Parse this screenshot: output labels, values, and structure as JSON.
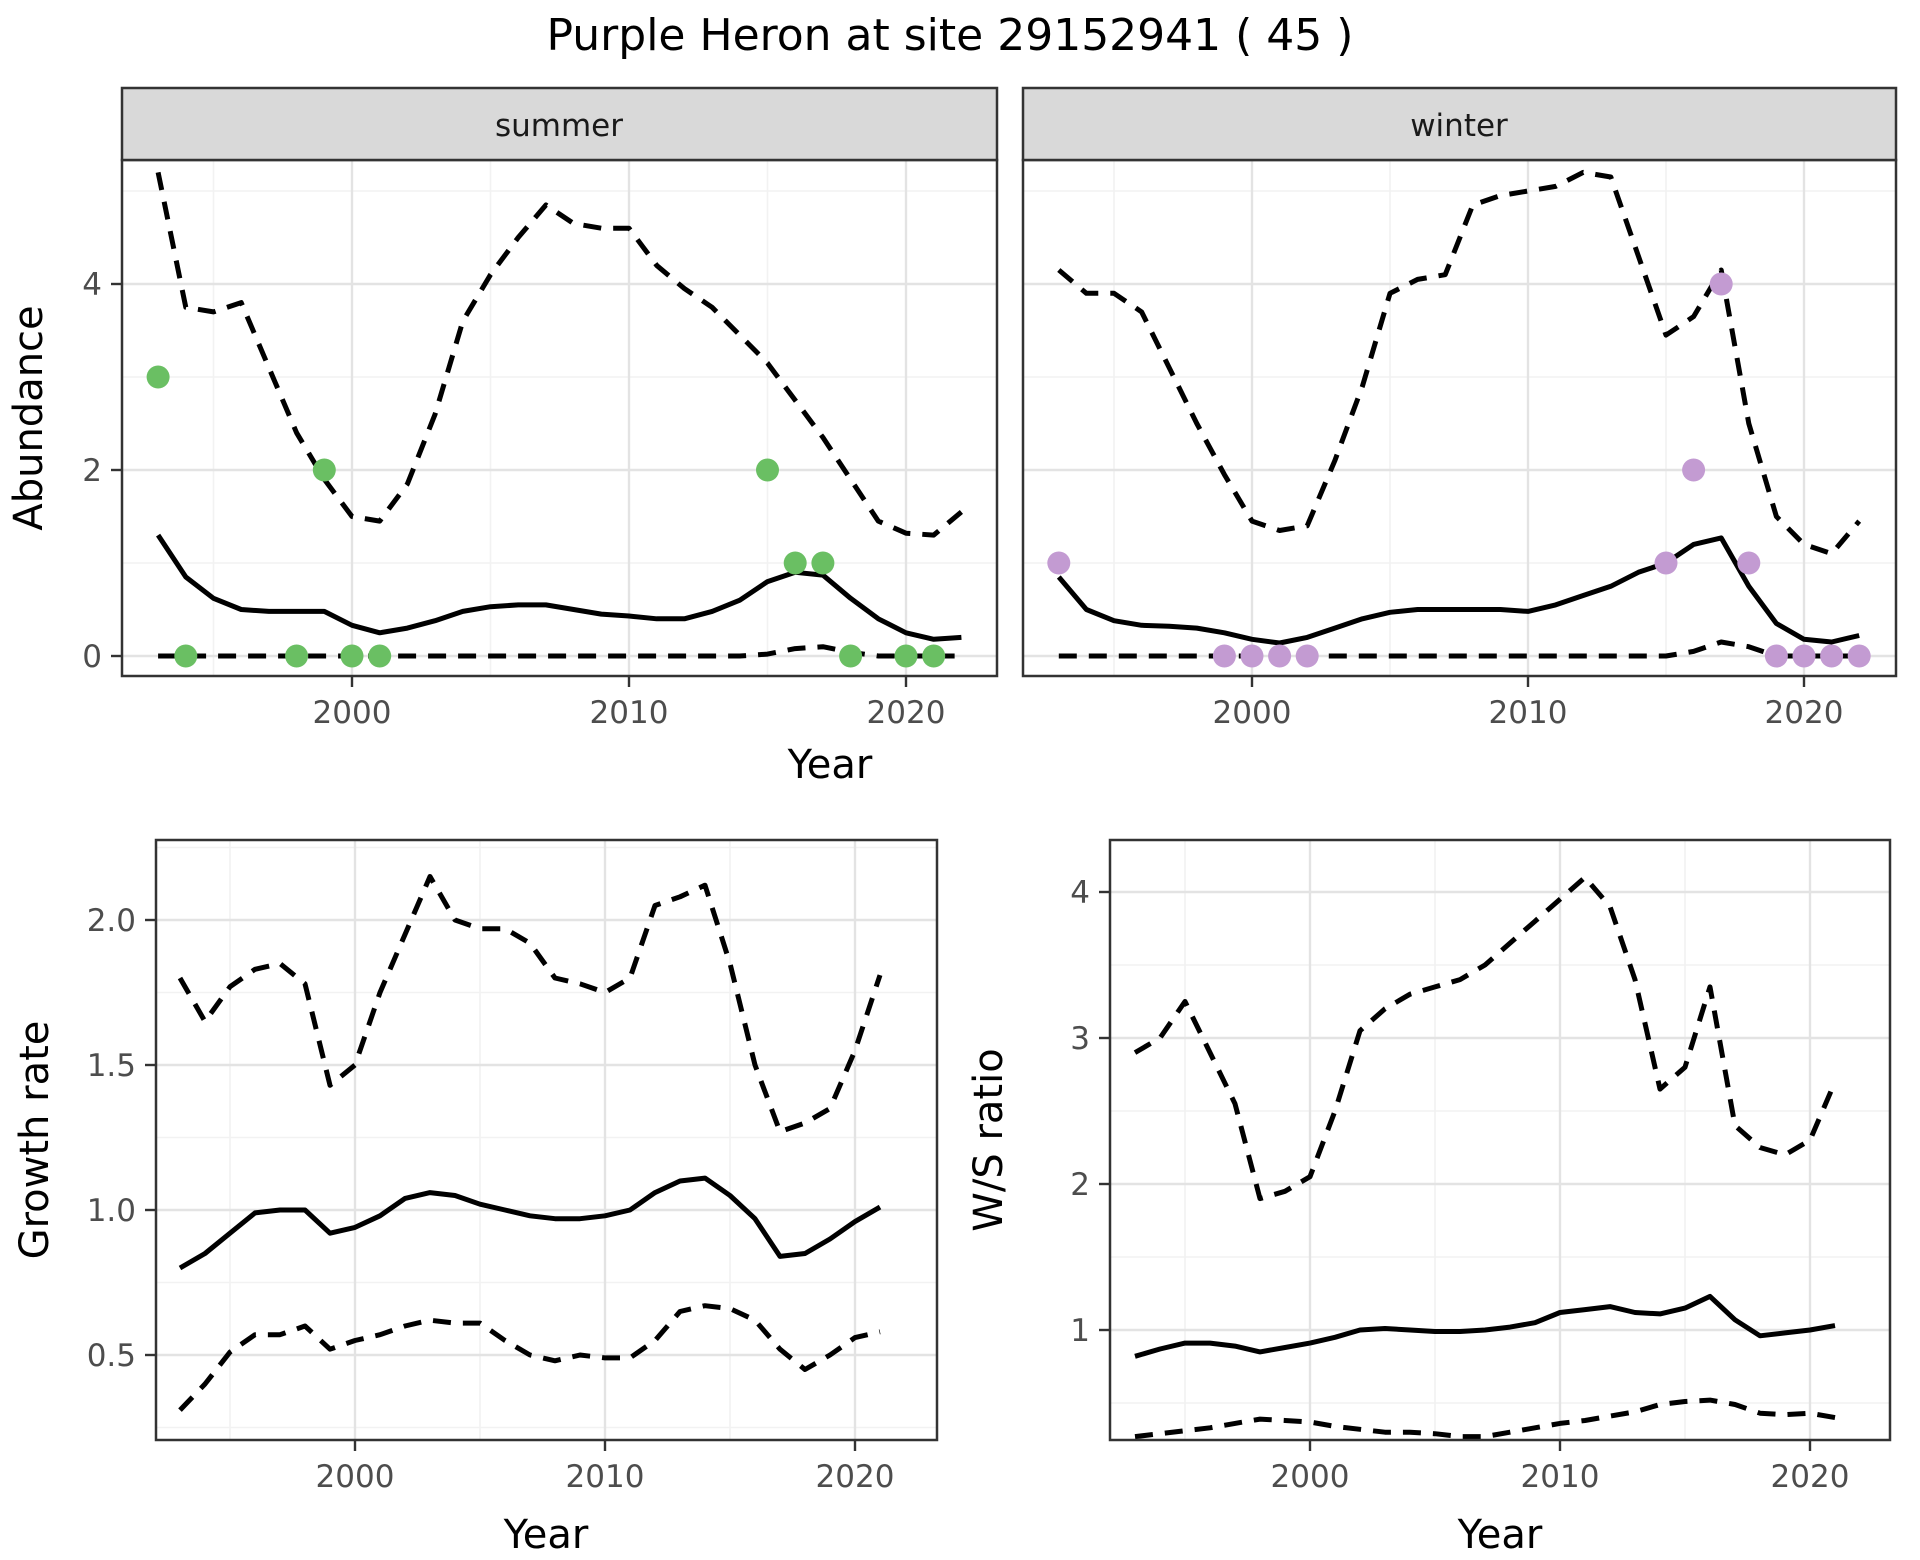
{
  "title": "Purple Heron at site 29152941 ( 45 )",
  "facet_strips": [
    "summer",
    "winter"
  ],
  "axis_labels": {
    "abundance": "Abundance",
    "top_year": "Year",
    "growth": "Growth rate",
    "growth_year": "Year",
    "ws": "W/S ratio",
    "ws_year": "Year"
  },
  "colors": {
    "summer_points": "#6abf63",
    "winter_points": "#c39bd2",
    "line": "#000000",
    "grid_major": "#e3e3e3",
    "grid_minor": "#f2f2f2",
    "strip_bg": "#d9d9d9",
    "panel_border": "#333333",
    "tick_text": "#4d4d4d"
  },
  "chart_data": [
    {
      "type": "line",
      "panel": "abundance-summer",
      "facet": "summer",
      "title": "Purple Heron at site 29152941 ( 45 )",
      "xlabel": "Year",
      "ylabel": "Abundance",
      "x_ticks": [
        2000,
        2010,
        2020
      ],
      "x_tick_labels": [
        "2000",
        "2010",
        "2020"
      ],
      "y_ticks": [
        0,
        2,
        4
      ],
      "y_tick_labels": [
        "0",
        "2",
        "4"
      ],
      "xlim": [
        1992,
        2023.3
      ],
      "ylim": [
        -0.25,
        5.35
      ],
      "grid": true,
      "years": [
        1993,
        1994,
        1995,
        1996,
        1997,
        1998,
        1999,
        2000,
        2001,
        2002,
        2003,
        2004,
        2005,
        2006,
        2007,
        2008,
        2009,
        2010,
        2011,
        2012,
        2013,
        2014,
        2015,
        2016,
        2017,
        2018,
        2019,
        2020,
        2021,
        2022
      ],
      "series": [
        {
          "name": "median",
          "style": "solid",
          "values": [
            1.3,
            0.85,
            0.62,
            0.5,
            0.48,
            0.48,
            0.48,
            0.33,
            0.25,
            0.3,
            0.38,
            0.48,
            0.53,
            0.55,
            0.55,
            0.5,
            0.45,
            0.43,
            0.4,
            0.4,
            0.48,
            0.6,
            0.8,
            0.9,
            0.87,
            0.62,
            0.4,
            0.25,
            0.18,
            0.2
          ]
        },
        {
          "name": "upper_dashed",
          "style": "dashed",
          "values": [
            5.2,
            3.75,
            3.7,
            3.8,
            3.1,
            2.4,
            1.9,
            1.5,
            1.45,
            1.85,
            2.6,
            3.6,
            4.1,
            4.5,
            4.85,
            4.65,
            4.6,
            4.6,
            4.2,
            3.95,
            3.75,
            3.45,
            3.15,
            2.75,
            2.35,
            1.9,
            1.45,
            1.32,
            1.3,
            1.55
          ]
        },
        {
          "name": "lower_dashed",
          "style": "dashed",
          "values": [
            0,
            0,
            0,
            0,
            0,
            0,
            0,
            0,
            0,
            0,
            0,
            0,
            0,
            0,
            0,
            0,
            0,
            0,
            0,
            0,
            0,
            0,
            0.02,
            0.08,
            0.1,
            0.04,
            0,
            0,
            0,
            0
          ]
        }
      ],
      "points": {
        "color": "#6abf63",
        "data": [
          [
            1993,
            3
          ],
          [
            1994,
            0
          ],
          [
            1998,
            0
          ],
          [
            1999,
            2
          ],
          [
            2000,
            0
          ],
          [
            2001,
            0
          ],
          [
            2015,
            2
          ],
          [
            2016,
            1
          ],
          [
            2017,
            1
          ],
          [
            2018,
            0
          ],
          [
            2020,
            0
          ],
          [
            2021,
            0
          ]
        ]
      }
    },
    {
      "type": "line",
      "panel": "abundance-winter",
      "facet": "winter",
      "xlabel": "Year",
      "ylabel": "Abundance",
      "x_ticks": [
        2000,
        2010,
        2020
      ],
      "x_tick_labels": [
        "2000",
        "2010",
        "2020"
      ],
      "y_ticks": [
        0,
        2,
        4
      ],
      "y_tick_labels": [
        "0",
        "2",
        "4"
      ],
      "xlim": [
        1992,
        2023.3
      ],
      "ylim": [
        -0.25,
        5.35
      ],
      "grid": true,
      "years": [
        1993,
        1994,
        1995,
        1996,
        1997,
        1998,
        1999,
        2000,
        2001,
        2002,
        2003,
        2004,
        2005,
        2006,
        2007,
        2008,
        2009,
        2010,
        2011,
        2012,
        2013,
        2014,
        2015,
        2016,
        2017,
        2018,
        2019,
        2020,
        2021,
        2022
      ],
      "series": [
        {
          "name": "median",
          "style": "solid",
          "values": [
            0.85,
            0.5,
            0.38,
            0.33,
            0.32,
            0.3,
            0.25,
            0.18,
            0.14,
            0.2,
            0.3,
            0.4,
            0.47,
            0.5,
            0.5,
            0.5,
            0.5,
            0.48,
            0.55,
            0.65,
            0.75,
            0.9,
            1.0,
            1.2,
            1.27,
            0.75,
            0.35,
            0.18,
            0.15,
            0.22
          ]
        },
        {
          "name": "upper_dashed",
          "style": "dashed",
          "values": [
            4.15,
            3.9,
            3.9,
            3.7,
            3.1,
            2.5,
            1.95,
            1.45,
            1.35,
            1.4,
            2.1,
            2.9,
            3.9,
            4.05,
            4.1,
            4.85,
            4.95,
            5.0,
            5.05,
            5.2,
            5.15,
            4.3,
            3.45,
            3.65,
            4.15,
            2.5,
            1.5,
            1.2,
            1.1,
            1.45
          ]
        },
        {
          "name": "lower_dashed",
          "style": "dashed",
          "values": [
            0,
            0,
            0,
            0,
            0,
            0,
            0,
            0,
            0,
            0,
            0,
            0,
            0,
            0,
            0,
            0,
            0,
            0,
            0,
            0,
            0,
            0,
            0,
            0.05,
            0.15,
            0.1,
            0,
            0,
            0,
            0
          ]
        }
      ],
      "points": {
        "color": "#c39bd2",
        "data": [
          [
            1993,
            1
          ],
          [
            1999,
            0
          ],
          [
            2000,
            0
          ],
          [
            2001,
            0
          ],
          [
            2002,
            0
          ],
          [
            2015,
            1
          ],
          [
            2016,
            2
          ],
          [
            2017,
            4
          ],
          [
            2018,
            1
          ],
          [
            2019,
            0
          ],
          [
            2020,
            0
          ],
          [
            2021,
            0
          ],
          [
            2022,
            0
          ]
        ]
      }
    },
    {
      "type": "line",
      "panel": "growth-rate",
      "facet": null,
      "xlabel": "Year",
      "ylabel": "Growth rate",
      "x_ticks": [
        2000,
        2010,
        2020
      ],
      "x_tick_labels": [
        "2000",
        "2010",
        "2020"
      ],
      "y_ticks": [
        0.5,
        1.0,
        1.5,
        2.0
      ],
      "y_tick_labels": [
        "0.5",
        "1.0",
        "1.5",
        "2.0"
      ],
      "xlim": [
        1992,
        2023.3
      ],
      "ylim": [
        0.2,
        2.28
      ],
      "grid": true,
      "years": [
        1993,
        1994,
        1995,
        1996,
        1997,
        1998,
        1999,
        2000,
        2001,
        2002,
        2003,
        2004,
        2005,
        2006,
        2007,
        2008,
        2009,
        2010,
        2011,
        2012,
        2013,
        2014,
        2015,
        2016,
        2017,
        2018,
        2019,
        2020,
        2021
      ],
      "series": [
        {
          "name": "median",
          "style": "solid",
          "values": [
            0.8,
            0.85,
            0.92,
            0.99,
            1.0,
            1.0,
            0.92,
            0.94,
            0.98,
            1.04,
            1.06,
            1.05,
            1.02,
            1.0,
            0.98,
            0.97,
            0.97,
            0.98,
            1.0,
            1.06,
            1.1,
            1.11,
            1.05,
            0.97,
            0.84,
            0.85,
            0.9,
            0.96,
            1.01
          ]
        },
        {
          "name": "upper_dashed",
          "style": "dashed",
          "values": [
            1.8,
            1.65,
            1.77,
            1.83,
            1.85,
            1.78,
            1.43,
            1.5,
            1.75,
            1.95,
            2.15,
            2.0,
            1.97,
            1.97,
            1.92,
            1.8,
            1.78,
            1.75,
            1.8,
            2.05,
            2.08,
            2.12,
            1.85,
            1.5,
            1.27,
            1.3,
            1.35,
            1.55,
            1.81
          ]
        },
        {
          "name": "lower_dashed",
          "style": "dashed",
          "values": [
            0.31,
            0.4,
            0.51,
            0.57,
            0.57,
            0.6,
            0.52,
            0.55,
            0.57,
            0.6,
            0.62,
            0.61,
            0.61,
            0.55,
            0.5,
            0.48,
            0.5,
            0.49,
            0.49,
            0.55,
            0.65,
            0.67,
            0.66,
            0.62,
            0.52,
            0.45,
            0.5,
            0.56,
            0.58
          ]
        }
      ],
      "points": null
    },
    {
      "type": "line",
      "panel": "ws-ratio",
      "facet": null,
      "xlabel": "Year",
      "ylabel": "W/S ratio",
      "x_ticks": [
        2000,
        2010,
        2020
      ],
      "x_tick_labels": [
        "2000",
        "2010",
        "2020"
      ],
      "y_ticks": [
        1,
        2,
        3,
        4
      ],
      "y_tick_labels": [
        "1",
        "2",
        "3",
        "4"
      ],
      "xlim": [
        1992,
        2023.3
      ],
      "ylim": [
        0.25,
        4.36
      ],
      "grid": true,
      "years": [
        1993,
        1994,
        1995,
        1996,
        1997,
        1998,
        1999,
        2000,
        2001,
        2002,
        2003,
        2004,
        2005,
        2006,
        2007,
        2008,
        2009,
        2010,
        2011,
        2012,
        2013,
        2014,
        2015,
        2016,
        2017,
        2018,
        2019,
        2020,
        2021
      ],
      "series": [
        {
          "name": "median",
          "style": "solid",
          "values": [
            0.82,
            0.87,
            0.91,
            0.91,
            0.89,
            0.85,
            0.88,
            0.91,
            0.95,
            1.0,
            1.01,
            1.0,
            0.99,
            0.99,
            1.0,
            1.02,
            1.05,
            1.12,
            1.14,
            1.16,
            1.12,
            1.11,
            1.15,
            1.23,
            1.07,
            0.96,
            0.98,
            1.0,
            1.03
          ]
        },
        {
          "name": "upper_dashed",
          "style": "dashed",
          "values": [
            2.9,
            3.0,
            3.25,
            2.9,
            2.55,
            1.9,
            1.95,
            2.05,
            2.5,
            3.05,
            3.2,
            3.3,
            3.35,
            3.4,
            3.5,
            3.65,
            3.8,
            3.95,
            4.1,
            3.9,
            3.4,
            2.65,
            2.8,
            3.35,
            2.4,
            2.25,
            2.2,
            2.3,
            2.7
          ]
        },
        {
          "name": "lower_dashed",
          "style": "dashed",
          "values": [
            0.27,
            0.29,
            0.31,
            0.33,
            0.36,
            0.39,
            0.38,
            0.37,
            0.34,
            0.32,
            0.3,
            0.3,
            0.29,
            0.27,
            0.27,
            0.3,
            0.33,
            0.36,
            0.38,
            0.41,
            0.44,
            0.49,
            0.51,
            0.52,
            0.49,
            0.43,
            0.42,
            0.43,
            0.4
          ]
        }
      ],
      "points": null
    }
  ]
}
